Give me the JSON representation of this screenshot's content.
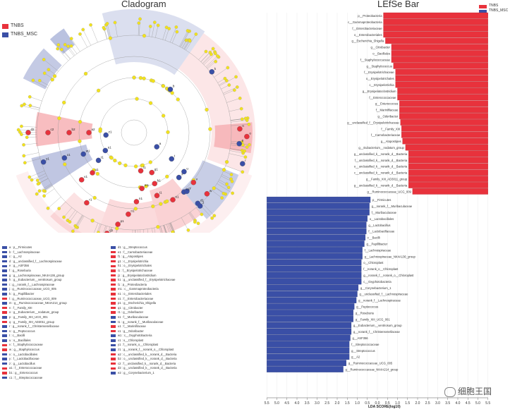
{
  "cladogram": {
    "title": "Cladogram",
    "legend": [
      {
        "label": "TNBS",
        "color": "#e8323c"
      },
      {
        "label": "TNBS_MSC",
        "color": "#3a4fa6"
      }
    ],
    "node_labels": [
      "d2",
      "c2",
      "b2",
      "a2",
      "z1",
      "y1",
      "x1",
      "w1",
      "v1",
      "u1",
      "t1",
      "s1",
      "r1",
      "q1",
      "p1",
      "o1",
      "n1",
      "m1",
      "l1",
      "k1",
      "j1",
      "i1",
      "h1",
      "g1",
      "f1",
      "e1",
      "a",
      "b",
      "c",
      "d",
      "e",
      "f",
      "g",
      "h",
      "i",
      "j",
      "k",
      "l",
      "m",
      "n",
      "o",
      "p",
      "q",
      "r",
      "s",
      "t",
      "u",
      "v",
      "w",
      "x",
      "y",
      "z"
    ]
  },
  "key_list": {
    "left": [
      {
        "text": "a : p__Firmicutes",
        "color": "#3a4fa6"
      },
      {
        "text": "b : f__Lachnospiraceae",
        "color": "#3a4fa6"
      },
      {
        "text": "c : g__A2",
        "color": "#3a4fa6"
      },
      {
        "text": "d : g__unclassified_f__Lachnospiraceae",
        "color": "#3a4fa6"
      },
      {
        "text": "e : g__ASF356",
        "color": "#3a4fa6"
      },
      {
        "text": "f : g__Roseburia",
        "color": "#3a4fa6"
      },
      {
        "text": "g : g__Lachnospiraceae_NK4A136_group",
        "color": "#3a4fa6"
      },
      {
        "text": "h : g__Eubacterium__ventriosum_group",
        "color": "#3a4fa6"
      },
      {
        "text": "i : g__norank_f__Lachnospiraceae",
        "color": "#3a4fa6"
      },
      {
        "text": "j : g__Ruminococcaceae_UCG_005",
        "color": "#3a4fa6"
      },
      {
        "text": "k : g__Papillibacter",
        "color": "#3a4fa6"
      },
      {
        "text": "l : g__Ruminococcaceae_UCG_009",
        "color": "#e8323c"
      },
      {
        "text": "m : g__Ruminococcaceae_NK4A214_group",
        "color": "#3a4fa6"
      },
      {
        "text": "n : f__Family_XIII",
        "color": "#e8323c"
      },
      {
        "text": "o : g__Eubacterium__nodatum_group",
        "color": "#e8323c"
      },
      {
        "text": "p : g__Family_XIII_UCG_001",
        "color": "#3a4fa6"
      },
      {
        "text": "q : g__Family_XIII_AD3011_group",
        "color": "#e8323c"
      },
      {
        "text": "r : g__norank_f__Christensenellaceae",
        "color": "#3a4fa6"
      },
      {
        "text": "s : g__Peptococcus",
        "color": "#3a4fa6"
      },
      {
        "text": "t : c__Bacilli",
        "color": "#3a4fa6"
      },
      {
        "text": "u : o__Bacillales",
        "color": "#3a4fa6"
      },
      {
        "text": "v : f__Staphylococcaceae",
        "color": "#e8323c"
      },
      {
        "text": "w : g__Staphylococcus",
        "color": "#e8323c"
      },
      {
        "text": "x : o__Lactobacillales",
        "color": "#3a4fa6"
      },
      {
        "text": "y : f__Lactobacillaceae",
        "color": "#3a4fa6"
      },
      {
        "text": "z : g__Lactobacillus",
        "color": "#3a4fa6"
      },
      {
        "text": "a1 : f__Enterococcaceae",
        "color": "#e8323c"
      },
      {
        "text": "b1 : g__Enterococcus",
        "color": "#e8323c"
      },
      {
        "text": "c1 : f__Streptococcaceae",
        "color": "#3a4fa6"
      }
    ],
    "right": [
      {
        "text": "d1 : g__Streptococcus",
        "color": "#3a4fa6"
      },
      {
        "text": "e1 : f__Carnobacteriaceae",
        "color": "#e8323c"
      },
      {
        "text": "f1 : g__Atopostipes",
        "color": "#e8323c"
      },
      {
        "text": "g1 : c__Erysipelotrichia",
        "color": "#e8323c"
      },
      {
        "text": "h1 : o__Erysipelotrichales",
        "color": "#e8323c"
      },
      {
        "text": "i1 : f__Erysipelotrichaceae",
        "color": "#e8323c"
      },
      {
        "text": "j1 : g__Erysipelatoclostridium",
        "color": "#e8323c"
      },
      {
        "text": "k1 : g__unclassified_f__Erysipelotrichaceae",
        "color": "#e8323c"
      },
      {
        "text": "l1 : p__Proteobacteria",
        "color": "#e8323c"
      },
      {
        "text": "m1 : c__Gammaproteobacteria",
        "color": "#e8323c"
      },
      {
        "text": "n1 : o__Enterobacteriales",
        "color": "#e8323c"
      },
      {
        "text": "o1 : f__Enterobacteriaceae",
        "color": "#e8323c"
      },
      {
        "text": "p1 : g__Escherichia_Shigella",
        "color": "#e8323c"
      },
      {
        "text": "q1 : g__Citrobacter",
        "color": "#e8323c"
      },
      {
        "text": "r1 : g__Odoribacter",
        "color": "#e8323c"
      },
      {
        "text": "s1 : f__Muribaculaceae",
        "color": "#3a4fa6"
      },
      {
        "text": "t1 : g__norank_f__Muribaculaceae",
        "color": "#3a4fa6"
      },
      {
        "text": "u1 : f__Marinifilaceae",
        "color": "#e8323c"
      },
      {
        "text": "v1 : g__Odoribacter",
        "color": "#e8323c"
      },
      {
        "text": "w1 : c__Oxyphotobacteria",
        "color": "#3a4fa6"
      },
      {
        "text": "x1 : o__Chloroplast",
        "color": "#3a4fa6"
      },
      {
        "text": "y1 : f__norank_o__Chloroplast",
        "color": "#3a4fa6"
      },
      {
        "text": "z1 : g__norank_f__norank_o__Chloroplast",
        "color": "#3a4fa6"
      },
      {
        "text": "a2 : c__unclassified_k__norank_d__Bacteria",
        "color": "#e8323c"
      },
      {
        "text": "b2 : o__unclassified_k__norank_d__Bacteria",
        "color": "#e8323c"
      },
      {
        "text": "c2 : f__unclassified_k__norank_d__Bacteria",
        "color": "#e8323c"
      },
      {
        "text": "d2 : g__unclassified_k__norank_d__Bacteria",
        "color": "#e8323c"
      },
      {
        "text": "e2 : g__Corynebacterium_1",
        "color": "#3a4fa6"
      }
    ]
  },
  "chart_data": {
    "type": "bar",
    "title": "LEfSe Bar",
    "xlabel": "LDA SCORE(log10)",
    "orientation": "horizontal-diverging",
    "xlim": [
      -5.5,
      5.5
    ],
    "x_ticks": [
      "5.5",
      "5.0",
      "4.5",
      "4.0",
      "3.5",
      "3.0",
      "2.5",
      "2.0",
      "1.5",
      "1.0",
      "0.5",
      "0.0",
      "0.5",
      "1.0",
      "1.5",
      "2.0",
      "2.5",
      "3.0",
      "3.5",
      "4.0",
      "4.5",
      "5.0",
      "5.5"
    ],
    "legend": [
      {
        "name": "TNBS",
        "color": "#e8323c"
      },
      {
        "name": "TNBS_MSC",
        "color": "#3a4fa6"
      }
    ],
    "series": [
      {
        "name": "TNBS",
        "color": "#e8323c",
        "categories": [
          "p__Proteobacteria",
          "c__Gammaproteobacteria",
          "f__Enterobacteriaceae",
          "o__Enterobacteriales",
          "g__Escherichia_Shigella",
          "g__Citrobacter",
          "o__Bacillales",
          "f__Staphylococcaceae",
          "g__Staphylococcus",
          "f__Erysipelotrichaceae",
          "o__Erysipelotrichales",
          "c__Erysipelotrichia",
          "g__Erysipelatoclostridium",
          "f__Enterococcaceae",
          "g__Enterococcus",
          "f__Marinifilaceae",
          "g__Odoribacter",
          "g__unclassified_f__Erysipelotrichaceae",
          "f__Family_XIII",
          "f__Carnobacteriaceae",
          "g__Atopostipes",
          "g__Eubacterium__nodatum_group",
          "g__unclassified_k__norank_d__Bacteria",
          "f__unclassified_k__norank_d__Bacteria",
          "o__unclassified_k__norank_d__Bacteria",
          "c__unclassified_k__norank_d__Bacteria",
          "g__Family_XIII_AD3011_group",
          "g__unclassified_k__norank_d__Bacteria",
          "g__Ruminococcaceae_UCG_009"
        ],
        "values": [
          5.2,
          5.2,
          5.2,
          5.2,
          5.1,
          4.8,
          4.8,
          4.8,
          4.7,
          4.6,
          4.6,
          4.6,
          4.5,
          4.5,
          4.4,
          4.4,
          4.4,
          4.35,
          4.3,
          4.3,
          4.25,
          4.1,
          3.95,
          3.95,
          3.95,
          3.95,
          3.95,
          3.95,
          3.75
        ]
      },
      {
        "name": "TNBS_MSC",
        "color": "#3a4fa6",
        "categories": [
          "p__Firmicutes",
          "g__norank_f__Muribaculaceae",
          "f__Muribaculaceae",
          "o__Lactobacillales",
          "g__Lactobacillus",
          "f__Lactobacillaceae",
          "c__Bacilli",
          "g__Papillibacter",
          "f__Lachnospiraceae",
          "g__Lachnospiraceae_NK4A136_group",
          "o__Chloroplast",
          "f__norank_o__Chloroplast",
          "g__norank_f__norank_o__Chloroplast",
          "c__Oxyphotobacteria",
          "g__Corynebacterium_1",
          "g__unclassified_f__Lachnospiraceae",
          "g__norank_f__Lachnospiraceae",
          "g__Peptococcus",
          "g__Roseburia",
          "g__Family_XIII_UCG_001",
          "g__Eubacterium__ventriosum_group",
          "g__norank_f__Christensenellaceae",
          "g__ASF356",
          "f__Streptococcaceae",
          "g__Streptococcus",
          "g__A2",
          "g__Ruminococcaceae_UCG_005",
          "g__Ruminococcaceae_NK4A214_group"
        ],
        "values": [
          5.15,
          5.1,
          5.1,
          5.0,
          4.95,
          4.95,
          4.9,
          4.85,
          4.75,
          4.75,
          4.7,
          4.7,
          4.7,
          4.7,
          4.55,
          4.5,
          4.45,
          4.35,
          4.3,
          4.3,
          4.2,
          4.2,
          4.15,
          4.1,
          4.1,
          4.1,
          3.95,
          3.8
        ]
      }
    ]
  },
  "watermark": "细胞王国"
}
